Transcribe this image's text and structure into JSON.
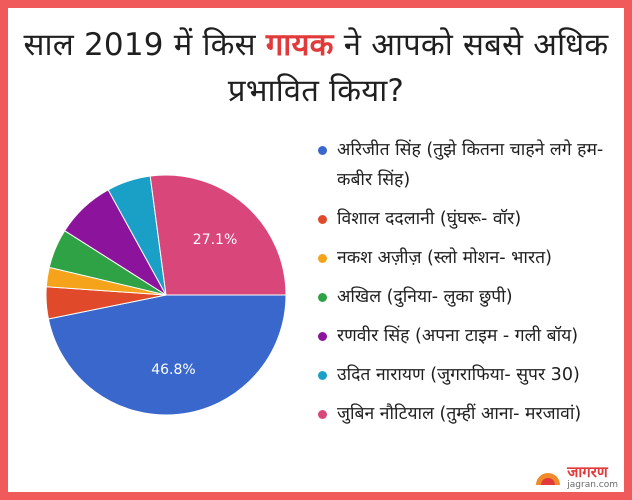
{
  "header": {
    "title_line1_pre": "साल 2019 में किस",
    "title_line1_highlight": "गायक",
    "title_line1_post": "ने आपको सबसे अधिक",
    "title_line2": "प्रभावित किया?"
  },
  "brand": {
    "name": "जागरण",
    "site": "jagran.com"
  },
  "chart_data": {
    "type": "pie",
    "categories": [
      "अरिजीत सिंह (तुझे कितना चाहने लगे हम- कबीर सिंह)",
      "विशाल ददलानी (घुंघरू- वॉर)",
      "नकश अज़ीज़ (स्लो मोशन- भारत)",
      "अखिल (दुनिया- लुका छुपी)",
      "रणवीर सिंह (अपना टाइम - गली बॉय)",
      "उदित नारायण (जुगराफिया- सुपर 30)",
      "जुबिन नौटियाल (तुम्हीं आना- मरजावां)"
    ],
    "values": [
      46.8,
      4.3,
      2.6,
      5.3,
      8.0,
      5.9,
      27.1
    ],
    "value_labels": [
      "46.8%",
      "",
      "",
      "",
      "",
      "",
      "27.1%"
    ],
    "colors": [
      "#3a67cc",
      "#e04a2b",
      "#f4a31b",
      "#2ea244",
      "#8c149c",
      "#1aa0c6",
      "#d9477a"
    ],
    "start_angle_deg": 0,
    "direction": "clockwise",
    "legend_position": "right"
  }
}
